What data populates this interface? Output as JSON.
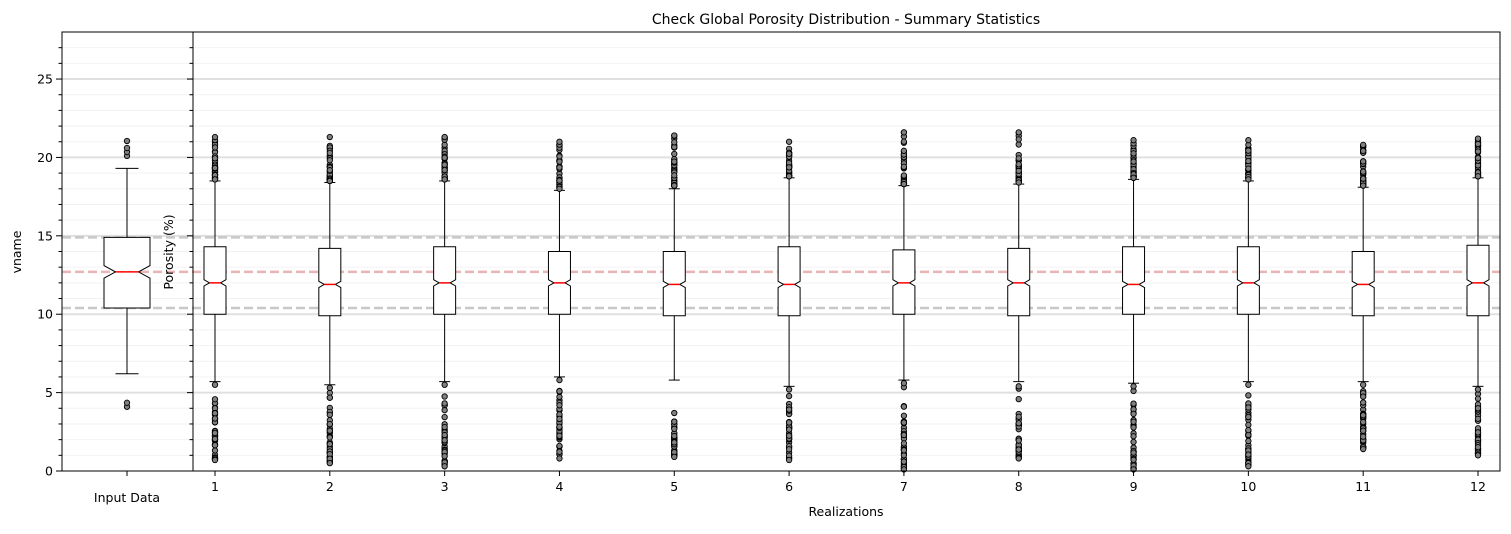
{
  "chart_data": {
    "type": "box",
    "title": "Check Global Porosity Distribution - Summary Statistics",
    "ylim": [
      0,
      28
    ],
    "reference_lines": {
      "p25": 10.4,
      "median": 12.7,
      "p75": 14.9
    },
    "minor_grid_step": 1,
    "major_grid_step": 5,
    "input_panel": {
      "ylabel": "vname",
      "category": "Input Data",
      "yticks": [
        0,
        5,
        10,
        15,
        20,
        25
      ],
      "box": {
        "whislo": 6.2,
        "q1": 10.4,
        "med": 12.7,
        "q3": 14.9,
        "whishi": 19.3,
        "notch_lo": 12.3,
        "notch_hi": 13.1,
        "fliers": [
          4.1,
          4.35,
          20.1,
          20.35,
          20.6,
          21.05
        ]
      }
    },
    "realizations_panel": {
      "ylabel": "Porosity (%)",
      "xlabel": "Realizations",
      "categories": [
        "1",
        "2",
        "3",
        "4",
        "5",
        "6",
        "7",
        "8",
        "9",
        "10",
        "11",
        "12"
      ],
      "boxes": [
        {
          "whislo": 5.7,
          "q1": 10.0,
          "med": 12.0,
          "q3": 14.3,
          "whishi": 18.5,
          "notch_lo": 11.8,
          "notch_hi": 12.2,
          "flier_low": [
            0.7,
            5.5
          ],
          "flier_high": [
            18.6,
            21.3
          ]
        },
        {
          "whislo": 5.5,
          "q1": 9.9,
          "med": 11.9,
          "q3": 14.2,
          "whishi": 18.4,
          "notch_lo": 11.7,
          "notch_hi": 12.1,
          "flier_low": [
            0.5,
            5.3
          ],
          "flier_high": [
            18.5,
            21.3
          ]
        },
        {
          "whislo": 5.7,
          "q1": 10.0,
          "med": 12.0,
          "q3": 14.3,
          "whishi": 18.5,
          "notch_lo": 11.8,
          "notch_hi": 12.2,
          "flier_low": [
            0.3,
            5.5
          ],
          "flier_high": [
            18.6,
            21.3
          ]
        },
        {
          "whislo": 6.0,
          "q1": 10.0,
          "med": 12.0,
          "q3": 14.0,
          "whishi": 17.9,
          "notch_lo": 11.8,
          "notch_hi": 12.2,
          "flier_low": [
            0.8,
            5.8
          ],
          "flier_high": [
            18.0,
            21.0
          ]
        },
        {
          "whislo": 5.8,
          "q1": 9.9,
          "med": 11.9,
          "q3": 14.0,
          "whishi": 18.0,
          "notch_lo": 11.7,
          "notch_hi": 12.1,
          "flier_low": [
            0.9,
            3.7
          ],
          "flier_high": [
            18.2,
            21.4
          ]
        },
        {
          "whislo": 5.4,
          "q1": 9.9,
          "med": 11.9,
          "q3": 14.3,
          "whishi": 18.7,
          "notch_lo": 11.7,
          "notch_hi": 12.1,
          "flier_low": [
            0.7,
            5.2
          ],
          "flier_high": [
            18.8,
            21.0
          ]
        },
        {
          "whislo": 5.8,
          "q1": 10.0,
          "med": 12.0,
          "q3": 14.1,
          "whishi": 18.2,
          "notch_lo": 11.8,
          "notch_hi": 12.2,
          "flier_low": [
            0.1,
            5.6
          ],
          "flier_high": [
            18.3,
            21.6
          ]
        },
        {
          "whislo": 5.7,
          "q1": 9.9,
          "med": 12.0,
          "q3": 14.2,
          "whishi": 18.3,
          "notch_lo": 11.8,
          "notch_hi": 12.2,
          "flier_low": [
            0.8,
            5.4
          ],
          "flier_high": [
            18.4,
            21.6
          ]
        },
        {
          "whislo": 5.6,
          "q1": 10.0,
          "med": 11.9,
          "q3": 14.3,
          "whishi": 18.6,
          "notch_lo": 11.7,
          "notch_hi": 12.1,
          "flier_low": [
            0.1,
            5.4
          ],
          "flier_high": [
            18.7,
            21.1
          ]
        },
        {
          "whislo": 5.7,
          "q1": 10.0,
          "med": 12.0,
          "q3": 14.3,
          "whishi": 18.5,
          "notch_lo": 11.8,
          "notch_hi": 12.2,
          "flier_low": [
            0.3,
            5.5
          ],
          "flier_high": [
            18.6,
            21.1
          ]
        },
        {
          "whislo": 5.7,
          "q1": 9.9,
          "med": 11.9,
          "q3": 14.0,
          "whishi": 18.1,
          "notch_lo": 11.7,
          "notch_hi": 12.1,
          "flier_low": [
            1.4,
            5.5
          ],
          "flier_high": [
            18.2,
            20.8
          ]
        },
        {
          "whislo": 5.4,
          "q1": 9.9,
          "med": 12.0,
          "q3": 14.4,
          "whishi": 18.7,
          "notch_lo": 11.8,
          "notch_hi": 12.2,
          "flier_low": [
            1.0,
            5.2
          ],
          "flier_high": [
            18.8,
            21.2
          ]
        }
      ]
    },
    "colors": {
      "box": "#000000",
      "median": "#ff0000",
      "flier_fill": "#808080",
      "ref_quartile": "#c8c8c8",
      "ref_median": "#e8b4b4",
      "grid_major": "#e0e0e0",
      "grid_minor": "#f2f2f2"
    }
  }
}
